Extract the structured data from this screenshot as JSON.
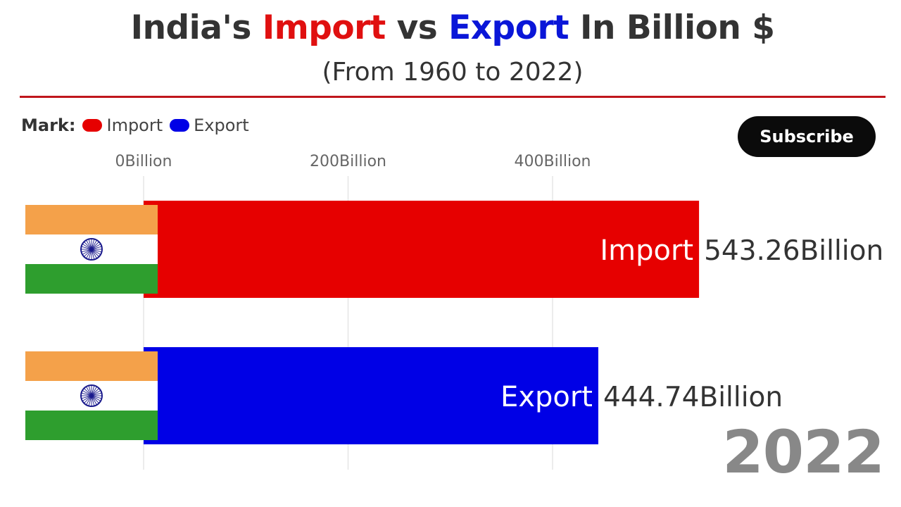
{
  "title": {
    "part1": "India's ",
    "import_word": "Import",
    "part2": " vs ",
    "export_word": "Export",
    "part3": " In Billion $"
  },
  "subtitle": "(From 1960 to 2022)",
  "legend": {
    "label": "Mark:",
    "items": [
      {
        "name": "Import",
        "color": "#e60000"
      },
      {
        "name": "Export",
        "color": "#0000e6"
      }
    ]
  },
  "subscribe_label": "Subscribe",
  "year": "2022",
  "colors": {
    "import": "#e60000",
    "export": "#0000e6",
    "title_import": "#e01010",
    "title_export": "#0a16d8",
    "flag_saffron": "#f4a14a",
    "flag_white": "#ffffff",
    "flag_green": "#2e9e2e",
    "chakra": "#1a1a8c"
  },
  "chart_data": {
    "type": "bar",
    "orientation": "horizontal",
    "categories": [
      "Import",
      "Export"
    ],
    "values": [
      543.26,
      444.74
    ],
    "value_labels": [
      "543.26Billion",
      "444.74Billion"
    ],
    "unit": "Billion",
    "xlim": [
      0,
      600
    ],
    "ticks": [
      {
        "value": 0,
        "label": "0Billion"
      },
      {
        "value": 200,
        "label": "200Billion"
      },
      {
        "value": 400,
        "label": "400Billion"
      }
    ],
    "grid": true,
    "legend_position": "top-left"
  }
}
